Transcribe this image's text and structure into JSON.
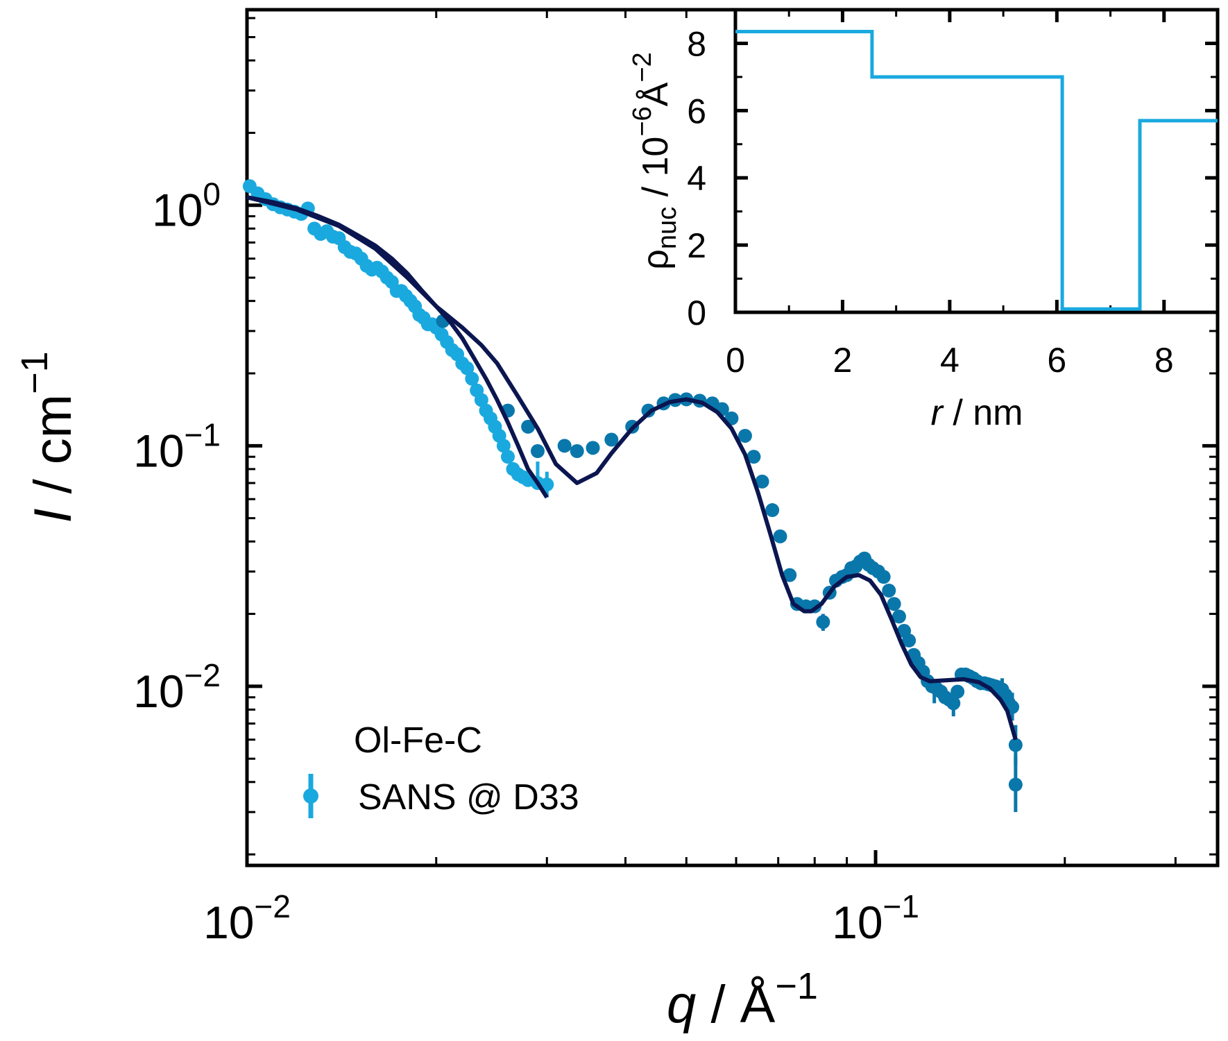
{
  "chart_data": [
    {
      "type": "scatter",
      "x_scale": "log",
      "y_scale": "log",
      "xlim": [
        0.01,
        0.35
      ],
      "ylim": [
        0.0018,
        6.5
      ],
      "x_tick_labels": [
        {
          "value": 0.01,
          "base": "10",
          "exp": "−2"
        },
        {
          "value": 0.1,
          "base": "10",
          "exp": "−1"
        }
      ],
      "y_tick_labels": [
        {
          "value": 1,
          "base": "10",
          "exp": "0"
        },
        {
          "value": 0.1,
          "base": "10",
          "exp": "−1"
        },
        {
          "value": 0.01,
          "base": "10",
          "exp": "−2"
        }
      ],
      "xlabel": {
        "var": "q",
        "sep": " / ",
        "unit": "Å",
        "exp": "−1"
      },
      "ylabel": {
        "var": "I",
        "sep": " / ",
        "unit": "cm",
        "exp": "−1"
      },
      "legend": {
        "title": "Ol-Fe-C",
        "entries": [
          "SANS @ D33"
        ],
        "position": "lower-left"
      },
      "series": [
        {
          "name": "SANS @ D33",
          "color": "#1aa9df",
          "points": [
            [
              0.0101,
              1.2
            ],
            [
              0.0104,
              1.12
            ],
            [
              0.0107,
              1.06
            ],
            [
              0.011,
              1.01
            ],
            [
              0.0113,
              0.98
            ],
            [
              0.0116,
              0.96
            ],
            [
              0.0119,
              0.94
            ],
            [
              0.0122,
              0.92
            ],
            [
              0.0125,
              0.97
            ],
            [
              0.0128,
              0.8
            ],
            [
              0.0131,
              0.76
            ],
            [
              0.0134,
              0.78
            ],
            [
              0.0137,
              0.74
            ],
            [
              0.014,
              0.73
            ],
            [
              0.0143,
              0.67
            ],
            [
              0.0146,
              0.64
            ],
            [
              0.0149,
              0.63
            ],
            [
              0.0152,
              0.6
            ],
            [
              0.0155,
              0.56
            ],
            [
              0.0158,
              0.54
            ],
            [
              0.0161,
              0.55
            ],
            [
              0.0164,
              0.53
            ],
            [
              0.0167,
              0.5
            ],
            [
              0.017,
              0.48
            ],
            [
              0.0173,
              0.44
            ],
            [
              0.0176,
              0.44
            ],
            [
              0.0179,
              0.42
            ],
            [
              0.0182,
              0.4
            ],
            [
              0.0185,
              0.38
            ],
            [
              0.0188,
              0.35
            ],
            [
              0.0191,
              0.34
            ],
            [
              0.0194,
              0.32
            ],
            [
              0.0197,
              0.32
            ],
            [
              0.02,
              0.31
            ],
            [
              0.0204,
              0.29
            ],
            [
              0.0208,
              0.27
            ],
            [
              0.0212,
              0.25
            ],
            [
              0.0216,
              0.24
            ],
            [
              0.022,
              0.22
            ],
            [
              0.0224,
              0.21
            ],
            [
              0.0228,
              0.19
            ],
            [
              0.0232,
              0.17
            ],
            [
              0.0236,
              0.155
            ],
            [
              0.024,
              0.14
            ],
            [
              0.0244,
              0.13
            ],
            [
              0.0248,
              0.12
            ],
            [
              0.0252,
              0.11
            ],
            [
              0.0256,
              0.1
            ],
            [
              0.026,
              0.09
            ],
            [
              0.0265,
              0.08
            ],
            [
              0.027,
              0.076
            ],
            [
              0.0275,
              0.074
            ],
            [
              0.028,
              0.072
            ],
            [
              0.029,
              0.07
            ],
            [
              0.03,
              0.069
            ]
          ],
          "error_points": [
            {
              "x": 0.029,
              "y": 0.078,
              "lo": 0.07,
              "hi": 0.086
            },
            {
              "x": 0.03,
              "y": 0.069,
              "lo": 0.061,
              "hi": 0.078
            }
          ]
        },
        {
          "name": "",
          "color": "#0a77ab",
          "points": [
            [
              0.0205,
              0.33
            ],
            [
              0.026,
              0.14
            ],
            [
              0.028,
              0.12
            ],
            [
              0.029,
              0.095
            ],
            [
              0.032,
              0.1
            ],
            [
              0.0335,
              0.095
            ],
            [
              0.0355,
              0.098
            ],
            [
              0.038,
              0.106
            ],
            [
              0.041,
              0.12
            ],
            [
              0.0435,
              0.14
            ],
            [
              0.046,
              0.15
            ],
            [
              0.048,
              0.155
            ],
            [
              0.05,
              0.156
            ],
            [
              0.0525,
              0.154
            ],
            [
              0.055,
              0.15
            ],
            [
              0.057,
              0.142
            ],
            [
              0.059,
              0.13
            ],
            [
              0.062,
              0.11
            ],
            [
              0.064,
              0.09
            ],
            [
              0.066,
              0.071
            ],
            [
              0.0685,
              0.054
            ],
            [
              0.0705,
              0.042
            ],
            [
              0.073,
              0.029
            ],
            [
              0.075,
              0.022
            ],
            [
              0.0775,
              0.0215
            ],
            [
              0.08,
              0.0215
            ],
            [
              0.0825,
              0.0185
            ],
            [
              0.0845,
              0.0245
            ],
            [
              0.0865,
              0.0275
            ],
            [
              0.0885,
              0.0285
            ],
            [
              0.09,
              0.029
            ],
            [
              0.0915,
              0.031
            ],
            [
              0.093,
              0.0315
            ],
            [
              0.0945,
              0.033
            ],
            [
              0.096,
              0.034
            ],
            [
              0.0975,
              0.032
            ],
            [
              0.099,
              0.031
            ],
            [
              0.101,
              0.03
            ],
            [
              0.103,
              0.0285
            ],
            [
              0.105,
              0.025
            ],
            [
              0.107,
              0.022
            ],
            [
              0.109,
              0.0195
            ],
            [
              0.111,
              0.017
            ],
            [
              0.113,
              0.0155
            ],
            [
              0.115,
              0.0135
            ],
            [
              0.117,
              0.0125
            ],
            [
              0.119,
              0.0115
            ],
            [
              0.121,
              0.0105
            ],
            [
              0.123,
              0.01
            ],
            [
              0.125,
              0.0098
            ],
            [
              0.127,
              0.0095
            ],
            [
              0.129,
              0.009
            ],
            [
              0.131,
              0.0088
            ],
            [
              0.133,
              0.0085
            ],
            [
              0.135,
              0.0095
            ],
            [
              0.137,
              0.0112
            ],
            [
              0.139,
              0.0112
            ],
            [
              0.141,
              0.011
            ],
            [
              0.143,
              0.0108
            ],
            [
              0.145,
              0.0105
            ],
            [
              0.147,
              0.0103
            ],
            [
              0.149,
              0.0103
            ],
            [
              0.151,
              0.0102
            ],
            [
              0.153,
              0.0101
            ],
            [
              0.155,
              0.01
            ],
            [
              0.157,
              0.0099
            ],
            [
              0.159,
              0.0097
            ],
            [
              0.161,
              0.0092
            ],
            [
              0.163,
              0.0085
            ],
            [
              0.165,
              0.0082
            ],
            [
              0.167,
              0.0057
            ],
            [
              0.167,
              0.0039
            ]
          ],
          "error_points": [
            {
              "x": 0.0825,
              "y": 0.0185,
              "lo": 0.017,
              "hi": 0.02
            },
            {
              "x": 0.124,
              "y": 0.0094,
              "lo": 0.0085,
              "hi": 0.0104
            },
            {
              "x": 0.133,
              "y": 0.0085,
              "lo": 0.0075,
              "hi": 0.0097
            },
            {
              "x": 0.159,
              "y": 0.0097,
              "lo": 0.0088,
              "hi": 0.0108
            },
            {
              "x": 0.165,
              "y": 0.0082,
              "lo": 0.0072,
              "hi": 0.0094
            },
            {
              "x": 0.167,
              "y": 0.0057,
              "lo": 0.0047,
              "hi": 0.0069
            },
            {
              "x": 0.167,
              "y": 0.0039,
              "lo": 0.003,
              "hi": 0.0051
            }
          ]
        }
      ],
      "fits": [
        {
          "name": "",
          "color": "#0b1650",
          "points": [
            [
              0.01,
              1.08
            ],
            [
              0.011,
              1.03
            ],
            [
              0.012,
              0.97
            ],
            [
              0.013,
              0.9
            ],
            [
              0.014,
              0.83
            ],
            [
              0.015,
              0.75
            ],
            [
              0.016,
              0.68
            ],
            [
              0.017,
              0.6
            ],
            [
              0.018,
              0.52
            ],
            [
              0.019,
              0.44
            ],
            [
              0.02,
              0.38
            ],
            [
              0.021,
              0.33
            ],
            [
              0.022,
              0.28
            ],
            [
              0.023,
              0.23
            ],
            [
              0.024,
              0.19
            ],
            [
              0.025,
              0.155
            ],
            [
              0.026,
              0.125
            ],
            [
              0.027,
              0.1
            ],
            [
              0.028,
              0.08
            ],
            [
              0.029,
              0.07
            ],
            [
              0.03,
              0.061
            ]
          ]
        },
        {
          "name": "",
          "color": "#0b1650",
          "points": [
            [
              0.01,
              1.08
            ],
            [
              0.012,
              0.96
            ],
            [
              0.014,
              0.82
            ],
            [
              0.016,
              0.66
            ],
            [
              0.018,
              0.5
            ],
            [
              0.02,
              0.38
            ],
            [
              0.022,
              0.31
            ],
            [
              0.0236,
              0.262
            ],
            [
              0.025,
              0.22
            ],
            [
              0.027,
              0.16
            ],
            [
              0.029,
              0.118
            ],
            [
              0.031,
              0.084
            ],
            [
              0.0335,
              0.07
            ],
            [
              0.036,
              0.077
            ],
            [
              0.038,
              0.093
            ],
            [
              0.041,
              0.118
            ],
            [
              0.044,
              0.14
            ],
            [
              0.047,
              0.152
            ],
            [
              0.05,
              0.156
            ],
            [
              0.053,
              0.151
            ],
            [
              0.056,
              0.138
            ],
            [
              0.059,
              0.118
            ],
            [
              0.062,
              0.092
            ],
            [
              0.065,
              0.064
            ],
            [
              0.068,
              0.043
            ],
            [
              0.071,
              0.029
            ],
            [
              0.074,
              0.022
            ],
            [
              0.077,
              0.0205
            ],
            [
              0.079,
              0.0205
            ],
            [
              0.082,
              0.022
            ],
            [
              0.086,
              0.026
            ],
            [
              0.09,
              0.0285
            ],
            [
              0.094,
              0.029
            ],
            [
              0.098,
              0.0275
            ],
            [
              0.102,
              0.024
            ],
            [
              0.106,
              0.019
            ],
            [
              0.11,
              0.015
            ],
            [
              0.114,
              0.0123
            ],
            [
              0.118,
              0.0109
            ],
            [
              0.122,
              0.0105
            ],
            [
              0.13,
              0.0106
            ],
            [
              0.138,
              0.0107
            ],
            [
              0.146,
              0.0104
            ],
            [
              0.152,
              0.0098
            ],
            [
              0.158,
              0.0088
            ],
            [
              0.162,
              0.0079
            ],
            [
              0.167,
              0.006
            ]
          ]
        }
      ]
    },
    {
      "type": "line",
      "inset": true,
      "xlim": [
        0,
        9
      ],
      "ylim": [
        0,
        9
      ],
      "x_ticks": [
        0,
        2,
        4,
        6,
        8
      ],
      "y_ticks": [
        0,
        2,
        4,
        6,
        8
      ],
      "xlabel": {
        "var": "r",
        "sep": " / ",
        "unit": "nm"
      },
      "ylabel": {
        "var": "ρ",
        "sub": "nuc",
        "sep": " / ",
        "unit_prefix": "10",
        "prefix_exp": "−6",
        "unit": "Å",
        "exp": "−2"
      },
      "series": [
        {
          "name": "",
          "color": "#1aa9df",
          "points": [
            [
              0,
              8.35
            ],
            [
              2.55,
              8.35
            ],
            [
              2.55,
              7.0
            ],
            [
              6.1,
              7.0
            ],
            [
              6.1,
              0.1
            ],
            [
              7.55,
              0.1
            ],
            [
              7.55,
              5.7
            ],
            [
              9,
              5.7
            ]
          ]
        }
      ]
    }
  ]
}
